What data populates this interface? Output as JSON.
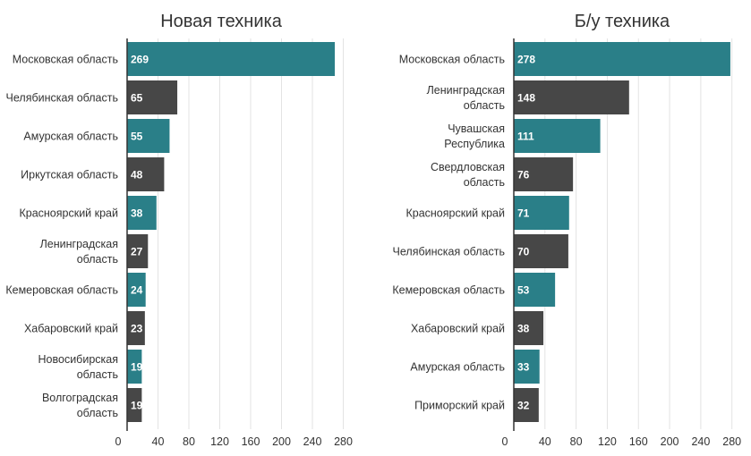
{
  "colors": {
    "teal": "#2a7f88",
    "dark": "#474747",
    "grid": "#e3e3e3",
    "text": "#333333"
  },
  "chart_data": [
    {
      "type": "bar",
      "orientation": "horizontal",
      "title": "Новая техника",
      "categories": [
        [
          "Московская область"
        ],
        [
          "Челябинская область"
        ],
        [
          "Амурская область"
        ],
        [
          "Иркутская область"
        ],
        [
          "Красноярский край"
        ],
        [
          "Ленинградская",
          "область"
        ],
        [
          "Кемеровская область"
        ],
        [
          "Хабаровский край"
        ],
        [
          "Новосибирская",
          "область"
        ],
        [
          "Волгоградская",
          "область"
        ]
      ],
      "values": [
        269,
        65,
        55,
        48,
        38,
        27,
        24,
        23,
        19,
        19
      ],
      "bar_colors": [
        "teal",
        "dark",
        "teal",
        "dark",
        "teal",
        "dark",
        "teal",
        "dark",
        "teal",
        "dark"
      ],
      "xticks": [
        0,
        40,
        80,
        120,
        160,
        200,
        240,
        280
      ],
      "xlim": [
        0,
        295
      ],
      "grid": true,
      "xlabel": "",
      "ylabel": ""
    },
    {
      "type": "bar",
      "orientation": "horizontal",
      "title": "Б/у техника",
      "categories": [
        [
          "Московская область"
        ],
        [
          "Ленинградская",
          "область"
        ],
        [
          "Чувашская",
          "Республика"
        ],
        [
          "Свердловская",
          "область"
        ],
        [
          "Красноярский край"
        ],
        [
          "Челябинская область"
        ],
        [
          "Кемеровская область"
        ],
        [
          "Хабаровский край"
        ],
        [
          "Амурская область"
        ],
        [
          "Приморский край"
        ]
      ],
      "values": [
        278,
        148,
        111,
        76,
        71,
        70,
        53,
        38,
        33,
        32
      ],
      "bar_colors": [
        "teal",
        "dark",
        "teal",
        "dark",
        "teal",
        "dark",
        "teal",
        "dark",
        "teal",
        "dark"
      ],
      "xticks": [
        0,
        40,
        80,
        120,
        160,
        200,
        240,
        280
      ],
      "xlim": [
        0,
        278
      ],
      "grid": true,
      "xlabel": "",
      "ylabel": ""
    }
  ]
}
